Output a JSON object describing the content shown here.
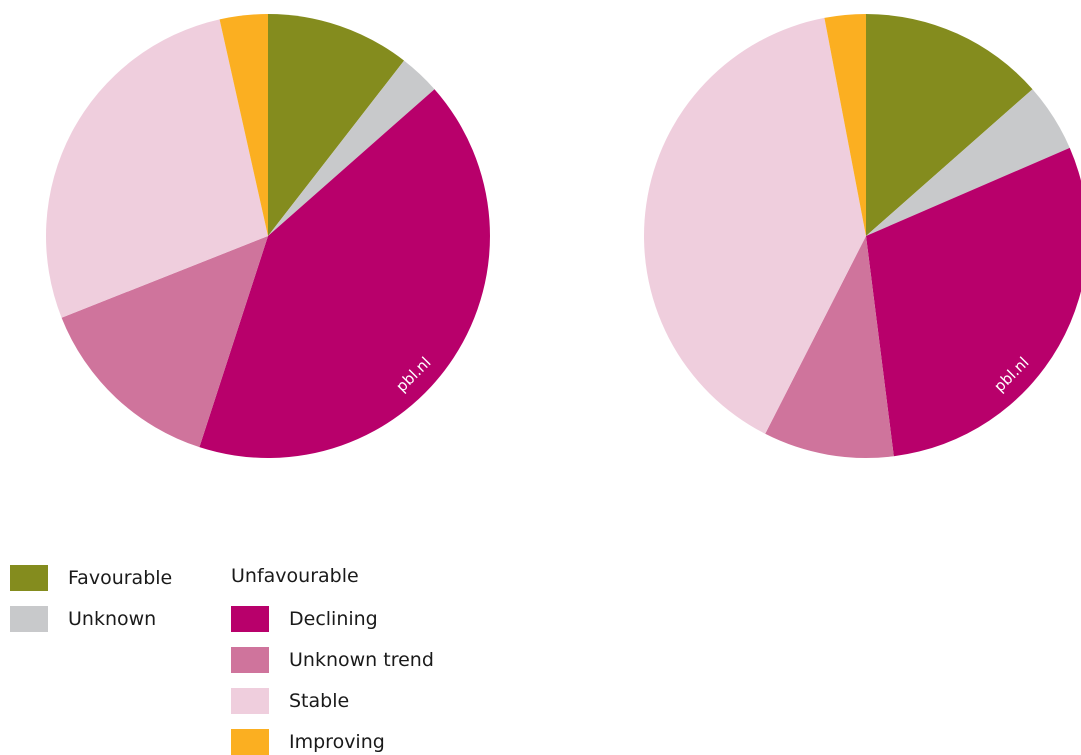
{
  "chart_data": [
    {
      "type": "pie",
      "slices": [
        {
          "name": "Favourable",
          "value": 10.5,
          "color": "#848c1e"
        },
        {
          "name": "Unknown",
          "value": 3.0,
          "color": "#c8c9cb"
        },
        {
          "name": "Declining",
          "value": 41.5,
          "color": "#b8006b"
        },
        {
          "name": "Unknown trend",
          "value": 14.0,
          "color": "#cf749c"
        },
        {
          "name": "Stable",
          "value": 27.5,
          "color": "#efcedd"
        },
        {
          "name": "Improving",
          "value": 3.5,
          "color": "#fbaf21"
        }
      ],
      "watermark": "pbl.nl"
    },
    {
      "type": "pie",
      "slices": [
        {
          "name": "Favourable",
          "value": 13.5,
          "color": "#848c1e"
        },
        {
          "name": "Unknown",
          "value": 5.0,
          "color": "#c8c9cb"
        },
        {
          "name": "Declining",
          "value": 29.5,
          "color": "#b8006b"
        },
        {
          "name": "Unknown trend",
          "value": 9.5,
          "color": "#cf749c"
        },
        {
          "name": "Stable",
          "value": 39.5,
          "color": "#efcedd"
        },
        {
          "name": "Improving",
          "value": 3.0,
          "color": "#fbaf21"
        }
      ],
      "watermark": "pbl.nl"
    }
  ],
  "legend": {
    "favourable": {
      "label": "Favourable",
      "color": "#848c1e"
    },
    "unknown": {
      "label": "Unknown",
      "color": "#c8c9cb"
    },
    "unfavourable_heading": "Unfavourable",
    "declining": {
      "label": "Declining",
      "color": "#b8006b"
    },
    "unknown_trend": {
      "label": "Unknown trend",
      "color": "#cf749c"
    },
    "stable": {
      "label": "Stable",
      "color": "#efcedd"
    },
    "improving": {
      "label": "Improving",
      "color": "#fbaf21"
    }
  }
}
